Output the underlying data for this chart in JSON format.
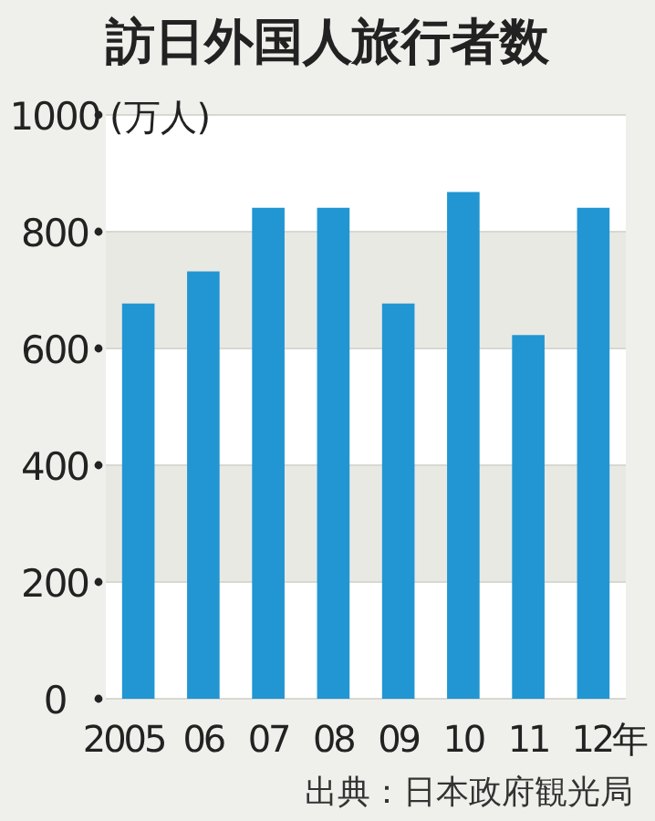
{
  "chart_data": {
    "type": "bar",
    "title": "訪日外国人旅行者数",
    "ylabel": "(万人)",
    "categories": [
      "2005",
      "06",
      "07",
      "08",
      "09",
      "10",
      "11",
      "12年"
    ],
    "values": [
      677,
      732,
      841,
      841,
      677,
      868,
      623,
      841
    ],
    "color": "#2196d3",
    "ylim": [
      0,
      1000
    ],
    "yticks": [
      0,
      200,
      400,
      600,
      800,
      1000
    ],
    "grid": "y",
    "annotations": [
      "出典：日本政府観光局"
    ]
  }
}
